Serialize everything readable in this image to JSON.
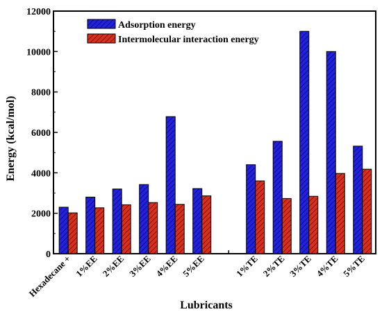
{
  "chart_data": {
    "type": "bar",
    "xlabel": "Lubricants",
    "ylabel": "Energy (kcal/mol)",
    "ylim": [
      0,
      12000
    ],
    "yticks": [
      0,
      2000,
      4000,
      6000,
      8000,
      10000,
      12000
    ],
    "grid": false,
    "legend_position": "top-left",
    "categories": [
      "Hexadecane +",
      "1%EE",
      "2%EE",
      "3%EE",
      "4%EE",
      "5%EE",
      "",
      "1%TE",
      "2%TE",
      "3%TE",
      "4%TE",
      "5%TE"
    ],
    "series": [
      {
        "name": "Adsorption energy",
        "color": "#1f1fdc",
        "pattern": "diagonal-hatch",
        "values": [
          2300,
          2800,
          3200,
          3420,
          6780,
          3220,
          null,
          4400,
          5560,
          11000,
          10000,
          5320
        ]
      },
      {
        "name": "Intermolecular interaction energy",
        "color": "#d42a1f",
        "pattern": "diagonal-hatch",
        "values": [
          2020,
          2270,
          2420,
          2530,
          2440,
          2860,
          null,
          3600,
          2730,
          2840,
          3970,
          4180
        ]
      }
    ]
  }
}
